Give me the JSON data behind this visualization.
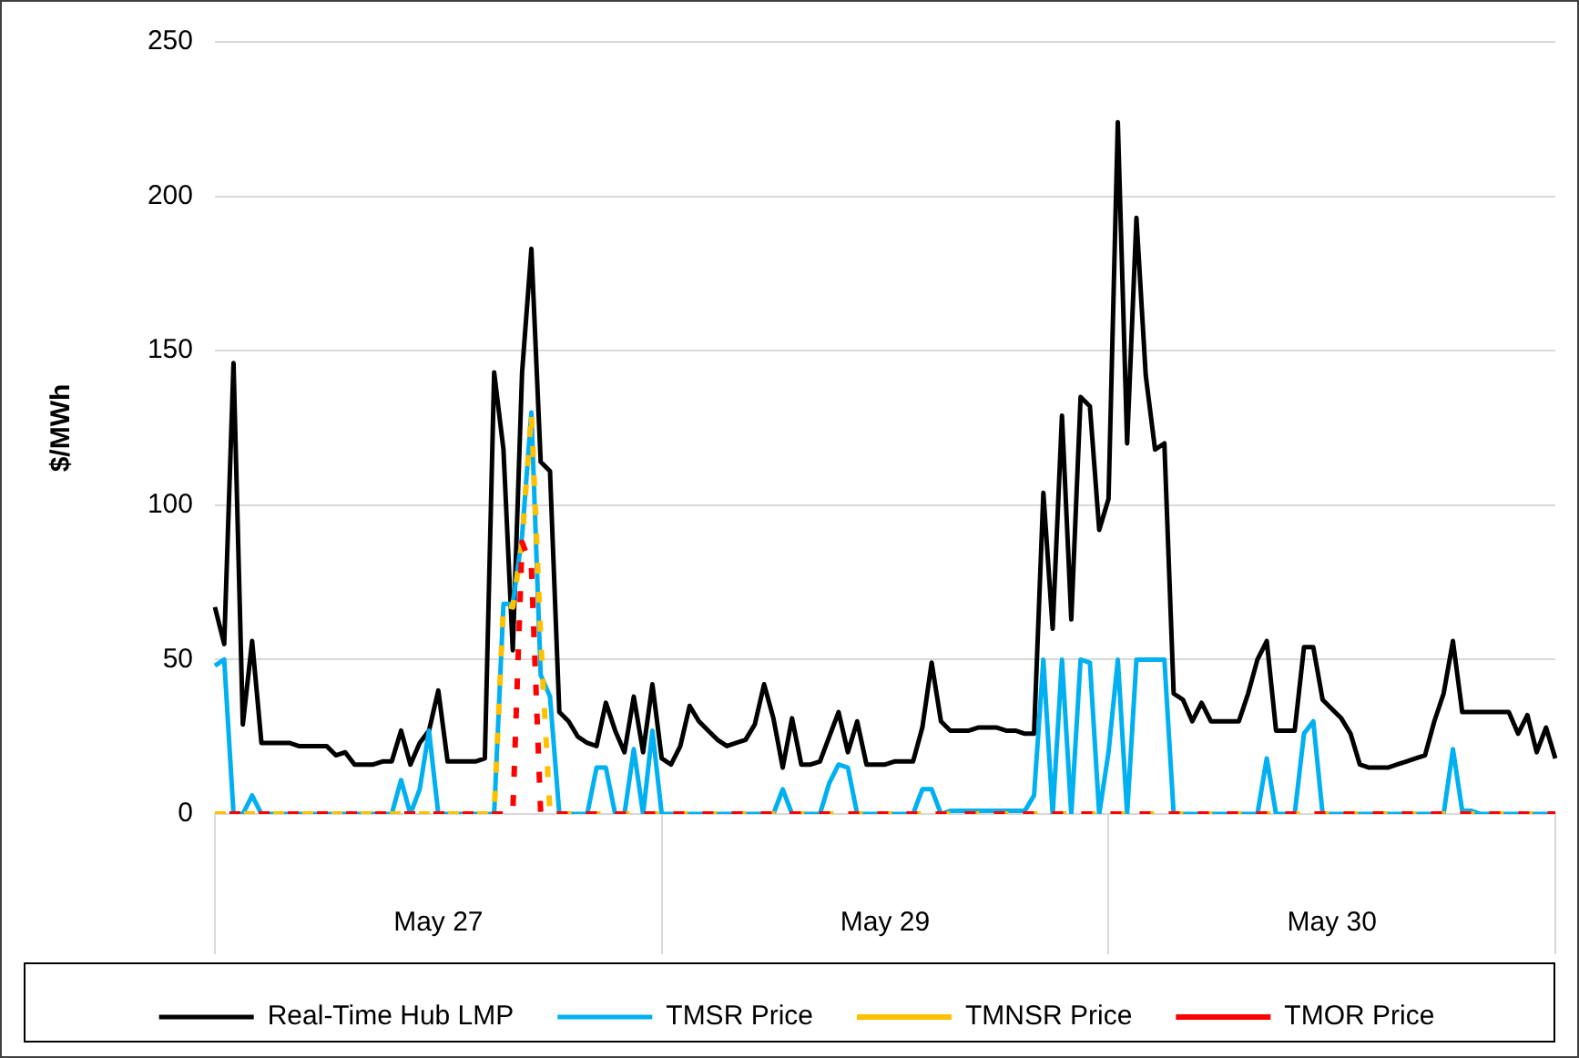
{
  "chart_data": {
    "type": "line",
    "ylabel": "$/MWh",
    "categories": [
      null,
      null,
      null,
      null,
      null,
      null,
      null,
      null,
      null,
      null,
      null,
      null,
      null,
      null,
      null,
      null,
      null,
      null,
      null,
      null,
      null,
      null,
      null,
      null,
      "May 27",
      null,
      null,
      null,
      null,
      null,
      null,
      null,
      null,
      null,
      null,
      null,
      null,
      null,
      null,
      null,
      null,
      null,
      null,
      null,
      null,
      null,
      null,
      null,
      null,
      null,
      null,
      null,
      null,
      null,
      null,
      null,
      null,
      null,
      null,
      null,
      null,
      null,
      null,
      null,
      null,
      null,
      null,
      null,
      null,
      null,
      null,
      null,
      "May 29",
      null,
      null,
      null,
      null,
      null,
      null,
      null,
      null,
      null,
      null,
      null,
      null,
      null,
      null,
      null,
      null,
      null,
      null,
      null,
      null,
      null,
      null,
      null,
      null,
      null,
      null,
      null,
      null,
      null,
      null,
      null,
      null,
      null,
      null,
      null,
      null,
      null,
      null,
      null,
      null,
      null,
      null,
      null,
      null,
      null,
      null,
      null,
      "May 30",
      null,
      null,
      null,
      null,
      null,
      null,
      null,
      null,
      null,
      null,
      null,
      null,
      null,
      null,
      null,
      null,
      null,
      null,
      null,
      null,
      null,
      null,
      null,
      null
    ],
    "ylim": [
      0,
      250
    ],
    "yticks": [
      0,
      50,
      100,
      150,
      200,
      250
    ],
    "grid": "y",
    "legend": "bottom",
    "series": [
      {
        "name": "Real-Time Hub LMP",
        "color": "#000000",
        "line_style": "solid",
        "values": [
          67,
          55,
          146,
          29,
          56,
          23,
          23,
          23,
          23,
          22,
          22,
          22,
          22,
          19,
          20,
          16,
          16,
          16,
          17,
          17,
          27,
          16,
          23,
          27,
          40,
          17,
          17,
          17,
          17,
          18,
          143,
          118,
          53,
          143,
          183,
          114,
          111,
          33,
          30,
          25,
          23,
          22,
          36,
          27,
          20,
          38,
          20,
          42,
          18,
          16,
          22,
          35,
          30,
          27,
          24,
          22,
          23,
          24,
          29,
          42,
          31,
          15,
          31,
          16,
          16,
          17,
          25,
          33,
          20,
          30,
          16,
          16,
          16,
          17,
          17,
          17,
          28,
          49,
          30,
          27,
          27,
          27,
          28,
          28,
          28,
          27,
          27,
          26,
          26,
          104,
          60,
          129,
          63,
          135,
          132,
          92,
          102,
          224,
          120,
          193,
          142,
          118,
          120,
          39,
          37,
          30,
          36,
          30,
          30,
          30,
          30,
          39,
          50,
          56,
          27,
          27,
          27,
          54,
          54,
          37,
          34,
          31,
          26,
          16,
          15,
          15,
          15,
          16,
          17,
          18,
          19,
          30,
          39,
          56,
          33,
          33,
          33,
          33,
          33,
          33,
          26,
          32,
          20,
          28,
          18
        ]
      },
      {
        "name": "TMSR Price",
        "color": "#00b0f0",
        "line_style": "solid",
        "values": [
          48,
          50,
          0,
          0,
          6,
          0,
          0,
          0,
          0,
          0,
          0,
          0,
          0,
          0,
          0,
          0,
          0,
          0,
          0,
          0,
          11,
          0,
          8,
          27,
          0,
          0,
          0,
          0,
          0,
          0,
          0,
          68,
          68,
          90,
          130,
          45,
          38,
          0,
          0,
          0,
          0,
          15,
          15,
          0,
          0,
          21,
          0,
          27,
          0,
          0,
          0,
          0,
          0,
          0,
          0,
          0,
          0,
          0,
          0,
          0,
          0,
          8,
          0,
          0,
          0,
          0,
          10,
          16,
          15,
          0,
          0,
          0,
          0,
          0,
          0,
          0,
          8,
          8,
          0,
          1,
          1,
          1,
          1,
          1,
          1,
          1,
          1,
          1,
          6,
          50,
          0,
          50,
          0,
          50,
          49,
          0,
          20,
          50,
          0,
          50,
          50,
          50,
          50,
          0,
          0,
          0,
          0,
          0,
          0,
          0,
          0,
          0,
          0,
          18,
          0,
          0,
          0,
          26,
          30,
          0,
          0,
          0,
          0,
          0,
          0,
          0,
          0,
          0,
          0,
          0,
          0,
          0,
          0,
          21,
          1,
          1,
          0,
          0,
          0,
          0,
          0,
          0,
          0,
          0,
          0
        ]
      },
      {
        "name": "TMNSR Price",
        "color": "#ffc000",
        "line_style": "dashed",
        "values": [
          0,
          0,
          0,
          0,
          0,
          0,
          0,
          0,
          0,
          0,
          0,
          0,
          0,
          0,
          0,
          0,
          0,
          0,
          0,
          0,
          0,
          0,
          0,
          0,
          0,
          0,
          0,
          0,
          0,
          0,
          0,
          68,
          67,
          88,
          130,
          57,
          0,
          0,
          0,
          0,
          0,
          0,
          0,
          0,
          0,
          0,
          0,
          0,
          0,
          0,
          0,
          0,
          0,
          0,
          0,
          0,
          0,
          0,
          0,
          0,
          0,
          0,
          0,
          0,
          0,
          0,
          0,
          0,
          0,
          0,
          0,
          0,
          0,
          0,
          0,
          0,
          0,
          0,
          0,
          0,
          0,
          0,
          0,
          0,
          0,
          0,
          0,
          0,
          0,
          0,
          0,
          0,
          0,
          0,
          0,
          0,
          0,
          0,
          0,
          0,
          0,
          0,
          0,
          0,
          0,
          0,
          0,
          0,
          0,
          0,
          0,
          0,
          0,
          0,
          0,
          0,
          0,
          0,
          0,
          0,
          0,
          0,
          0,
          0,
          0,
          0,
          0,
          0,
          0,
          0,
          0,
          0,
          0,
          0,
          0,
          0,
          0,
          0,
          0,
          0,
          0,
          0,
          0,
          0,
          0
        ]
      },
      {
        "name": "TMOR Price",
        "color": "#ff0000",
        "line_style": "dashed",
        "values": [
          0,
          0,
          0,
          0,
          0,
          0,
          0,
          0,
          0,
          0,
          0,
          0,
          0,
          0,
          0,
          0,
          0,
          0,
          0,
          0,
          0,
          0,
          0,
          0,
          0,
          0,
          0,
          0,
          0,
          0,
          0,
          0,
          0,
          88,
          80,
          0,
          0,
          0,
          0,
          0,
          0,
          0,
          0,
          0,
          0,
          0,
          0,
          0,
          0,
          0,
          0,
          0,
          0,
          0,
          0,
          0,
          0,
          0,
          0,
          0,
          0,
          0,
          0,
          0,
          0,
          0,
          0,
          0,
          0,
          0,
          0,
          0,
          0,
          0,
          0,
          0,
          0,
          0,
          0,
          0,
          0,
          0,
          0,
          0,
          0,
          0,
          0,
          0,
          0,
          0,
          0,
          0,
          0,
          0,
          0,
          0,
          0,
          0,
          0,
          0,
          0,
          0,
          0,
          0,
          0,
          0,
          0,
          0,
          0,
          0,
          0,
          0,
          0,
          0,
          0,
          0,
          0,
          0,
          0,
          0,
          0,
          0,
          0,
          0,
          0,
          0,
          0,
          0,
          0,
          0,
          0,
          0,
          0,
          0,
          0,
          0,
          0,
          0,
          0,
          0,
          0,
          0,
          0,
          0,
          0
        ]
      }
    ]
  }
}
